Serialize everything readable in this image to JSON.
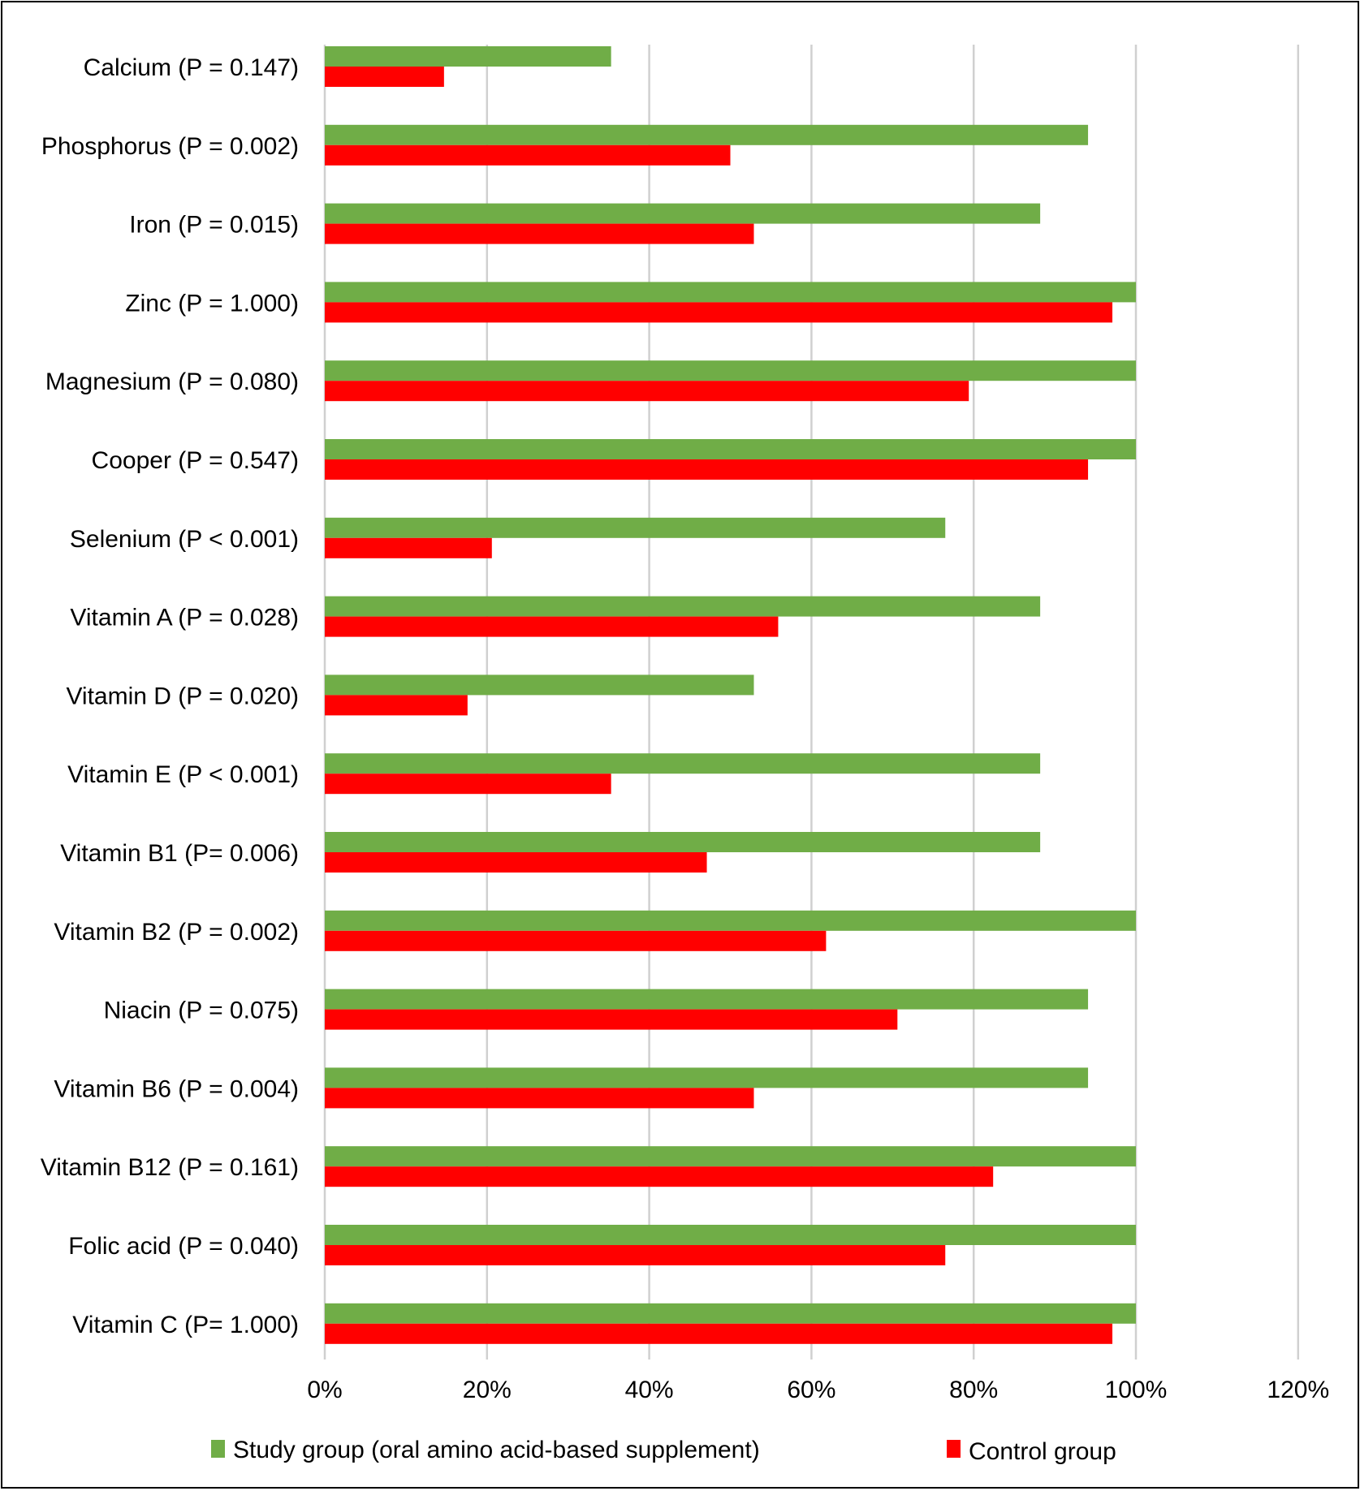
{
  "chart_data": {
    "type": "bar",
    "orientation": "horizontal",
    "title": "",
    "xlabel": "",
    "ylabel": "",
    "xlim": [
      0,
      120
    ],
    "xticks": [
      "0%",
      "20%",
      "40%",
      "60%",
      "80%",
      "100%",
      "120%"
    ],
    "grid": "vertical",
    "legend_position": "bottom",
    "categories": [
      "Calcium (P = 0.147)",
      "Phosphorus (P = 0.002)",
      "Iron (P = 0.015)",
      "Zinc (P = 1.000)",
      "Magnesium (P = 0.080)",
      "Cooper (P = 0.547)",
      "Selenium (P < 0.001)",
      "Vitamin A (P = 0.028)",
      "Vitamin D (P = 0.020)",
      "Vitamin E (P < 0.001)",
      "Vitamin B1 (P= 0.006)",
      "Vitamin B2 (P = 0.002)",
      "Niacin (P = 0.075)",
      "Vitamin B6 (P = 0.004)",
      "Vitamin B12 (P = 0.161)",
      "Folic acid (P = 0.040)",
      "Vitamin C (P= 1.000)"
    ],
    "series": [
      {
        "name": "Study group (oral amino acid-based supplement)",
        "color": "#70AD47",
        "values": [
          35.3,
          94.1,
          88.2,
          100,
          100,
          100,
          76.5,
          88.2,
          52.9,
          88.2,
          88.2,
          100,
          94.1,
          94.1,
          100,
          100,
          100
        ]
      },
      {
        "name": "Control group",
        "color": "#FF0000",
        "values": [
          14.7,
          50.0,
          52.9,
          97.1,
          79.4,
          94.1,
          20.6,
          55.9,
          17.6,
          35.3,
          47.1,
          61.8,
          70.6,
          52.9,
          82.4,
          76.5,
          97.1
        ]
      }
    ]
  }
}
